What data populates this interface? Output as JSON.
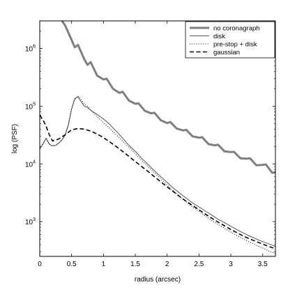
{
  "chart_data": {
    "type": "line",
    "title": "",
    "xlabel": "radius (arcsec)",
    "ylabel": "log (PSF)",
    "xlim": [
      0,
      3.7
    ],
    "ylim": [
      250,
      3000000
    ],
    "yscale": "log",
    "grid": false,
    "legend_position": "top-right",
    "x_ticks": [
      {
        "value": 0,
        "label": "0"
      },
      {
        "value": 0.5,
        "label": "0.5"
      },
      {
        "value": 1,
        "label": "1"
      },
      {
        "value": 1.5,
        "label": "1.5"
      },
      {
        "value": 2,
        "label": "2"
      },
      {
        "value": 2.5,
        "label": "2.5"
      },
      {
        "value": 3,
        "label": "3"
      },
      {
        "value": 3.5,
        "label": "3.5"
      }
    ],
    "y_ticks": [
      {
        "value": 1000,
        "base": "10",
        "exp": "3"
      },
      {
        "value": 10000,
        "base": "10",
        "exp": "4"
      },
      {
        "value": 100000,
        "base": "10",
        "exp": "5"
      },
      {
        "value": 1000000,
        "base": "10",
        "exp": "6"
      }
    ],
    "series": [
      {
        "name": "no coronagraph",
        "color": "#7f7f7f",
        "dash": "solid",
        "width": 3,
        "points": [
          [
            0.35,
            3000000
          ],
          [
            0.4,
            2500000
          ],
          [
            0.5,
            1400000
          ],
          [
            0.55,
            1050000
          ],
          [
            0.6,
            1150000
          ],
          [
            0.7,
            650000
          ],
          [
            0.75,
            520000
          ],
          [
            0.8,
            580000
          ],
          [
            0.9,
            340000
          ],
          [
            1.0,
            290000
          ],
          [
            1.05,
            300000
          ],
          [
            1.15,
            200000
          ],
          [
            1.25,
            170000
          ],
          [
            1.3,
            178000
          ],
          [
            1.4,
            125000
          ],
          [
            1.5,
            110000
          ],
          [
            1.55,
            112000
          ],
          [
            1.65,
            83000
          ],
          [
            1.75,
            75000
          ],
          [
            1.8,
            77000
          ],
          [
            1.9,
            57000
          ],
          [
            2.0,
            51000
          ],
          [
            2.05,
            53000
          ],
          [
            2.15,
            41000
          ],
          [
            2.25,
            38000
          ],
          [
            2.3,
            39000
          ],
          [
            2.4,
            30000
          ],
          [
            2.5,
            28500
          ],
          [
            2.55,
            29000
          ],
          [
            2.65,
            22000
          ],
          [
            2.75,
            21000
          ],
          [
            2.8,
            21500
          ],
          [
            2.9,
            16500
          ],
          [
            3.0,
            16000
          ],
          [
            3.05,
            16200
          ],
          [
            3.15,
            12500
          ],
          [
            3.25,
            12300
          ],
          [
            3.3,
            12500
          ],
          [
            3.4,
            9500
          ],
          [
            3.5,
            9600
          ],
          [
            3.55,
            9800
          ],
          [
            3.65,
            7000
          ],
          [
            3.7,
            7200
          ]
        ]
      },
      {
        "name": "disk",
        "color": "#555555",
        "dash": "solid",
        "width": 1,
        "points": [
          [
            0.0,
            18000
          ],
          [
            0.05,
            22000
          ],
          [
            0.1,
            28000
          ],
          [
            0.15,
            22000
          ],
          [
            0.2,
            20500
          ],
          [
            0.25,
            21000
          ],
          [
            0.3,
            23000
          ],
          [
            0.35,
            26000
          ],
          [
            0.4,
            32000
          ],
          [
            0.45,
            48000
          ],
          [
            0.5,
            90000
          ],
          [
            0.55,
            135000
          ],
          [
            0.6,
            145000
          ],
          [
            0.65,
            120000
          ],
          [
            0.7,
            100000
          ],
          [
            0.75,
            95000
          ],
          [
            0.8,
            85000
          ],
          [
            0.9,
            72000
          ],
          [
            1.0,
            60000
          ],
          [
            1.1,
            48000
          ],
          [
            1.2,
            37000
          ],
          [
            1.3,
            28000
          ],
          [
            1.4,
            21000
          ],
          [
            1.5,
            16500
          ],
          [
            1.6,
            12500
          ],
          [
            1.7,
            9800
          ],
          [
            1.8,
            7600
          ],
          [
            1.9,
            6000
          ],
          [
            2.0,
            4800
          ],
          [
            2.1,
            3800
          ],
          [
            2.2,
            3100
          ],
          [
            2.3,
            2550
          ],
          [
            2.4,
            2100
          ],
          [
            2.5,
            1800
          ],
          [
            2.6,
            1520
          ],
          [
            2.7,
            1300
          ],
          [
            2.8,
            1100
          ],
          [
            2.9,
            960
          ],
          [
            3.0,
            830
          ],
          [
            3.1,
            720
          ],
          [
            3.2,
            630
          ],
          [
            3.3,
            560
          ],
          [
            3.4,
            500
          ],
          [
            3.5,
            450
          ],
          [
            3.6,
            410
          ],
          [
            3.7,
            370
          ]
        ]
      },
      {
        "name": "pre-stop + disk",
        "color": "#000000",
        "dash": "dotted",
        "width": 1,
        "points": [
          [
            0.0,
            18500
          ],
          [
            0.05,
            22500
          ],
          [
            0.1,
            27000
          ],
          [
            0.15,
            22000
          ],
          [
            0.2,
            20500
          ],
          [
            0.25,
            21000
          ],
          [
            0.3,
            23000
          ],
          [
            0.35,
            26000
          ],
          [
            0.4,
            31000
          ],
          [
            0.45,
            47000
          ],
          [
            0.5,
            88000
          ],
          [
            0.55,
            130000
          ],
          [
            0.6,
            150000
          ],
          [
            0.65,
            130000
          ],
          [
            0.7,
            110000
          ],
          [
            0.75,
            100000
          ],
          [
            0.8,
            85000
          ],
          [
            0.9,
            66000
          ],
          [
            1.0,
            52000
          ],
          [
            1.1,
            41000
          ],
          [
            1.2,
            32000
          ],
          [
            1.3,
            25000
          ],
          [
            1.4,
            19500
          ],
          [
            1.5,
            15000
          ],
          [
            1.6,
            11500
          ],
          [
            1.7,
            9000
          ],
          [
            1.8,
            7000
          ],
          [
            1.9,
            5500
          ],
          [
            2.0,
            4300
          ],
          [
            2.1,
            3400
          ],
          [
            2.2,
            2700
          ],
          [
            2.3,
            2200
          ],
          [
            2.4,
            1800
          ],
          [
            2.5,
            1500
          ],
          [
            2.6,
            1250
          ],
          [
            2.7,
            1050
          ],
          [
            2.8,
            900
          ],
          [
            2.9,
            770
          ],
          [
            3.0,
            660
          ],
          [
            3.1,
            570
          ],
          [
            3.2,
            500
          ],
          [
            3.3,
            440
          ],
          [
            3.4,
            390
          ],
          [
            3.5,
            350
          ],
          [
            3.6,
            310
          ],
          [
            3.7,
            280
          ]
        ]
      },
      {
        "name": "gaussian",
        "color": "#000000",
        "dash": "dashed",
        "width": 1.6,
        "points": [
          [
            0.0,
            70000
          ],
          [
            0.05,
            58000
          ],
          [
            0.1,
            45000
          ],
          [
            0.15,
            32000
          ],
          [
            0.2,
            25000
          ],
          [
            0.3,
            27000
          ],
          [
            0.4,
            32000
          ],
          [
            0.5,
            39000
          ],
          [
            0.6,
            41000
          ],
          [
            0.7,
            40000
          ],
          [
            0.8,
            37000
          ],
          [
            0.9,
            33000
          ],
          [
            1.0,
            28500
          ],
          [
            1.1,
            24000
          ],
          [
            1.2,
            20000
          ],
          [
            1.3,
            16500
          ],
          [
            1.4,
            13500
          ],
          [
            1.5,
            11000
          ],
          [
            1.6,
            9000
          ],
          [
            1.7,
            7400
          ],
          [
            1.8,
            6000
          ],
          [
            1.9,
            4900
          ],
          [
            2.0,
            4000
          ],
          [
            2.1,
            3300
          ],
          [
            2.2,
            2700
          ],
          [
            2.3,
            2250
          ],
          [
            2.4,
            1900
          ],
          [
            2.5,
            1600
          ],
          [
            2.6,
            1350
          ],
          [
            2.7,
            1150
          ],
          [
            2.8,
            980
          ],
          [
            2.9,
            850
          ],
          [
            3.0,
            730
          ],
          [
            3.1,
            640
          ],
          [
            3.2,
            560
          ],
          [
            3.3,
            500
          ],
          [
            3.4,
            450
          ],
          [
            3.5,
            410
          ],
          [
            3.6,
            370
          ],
          [
            3.7,
            340
          ]
        ]
      }
    ]
  }
}
